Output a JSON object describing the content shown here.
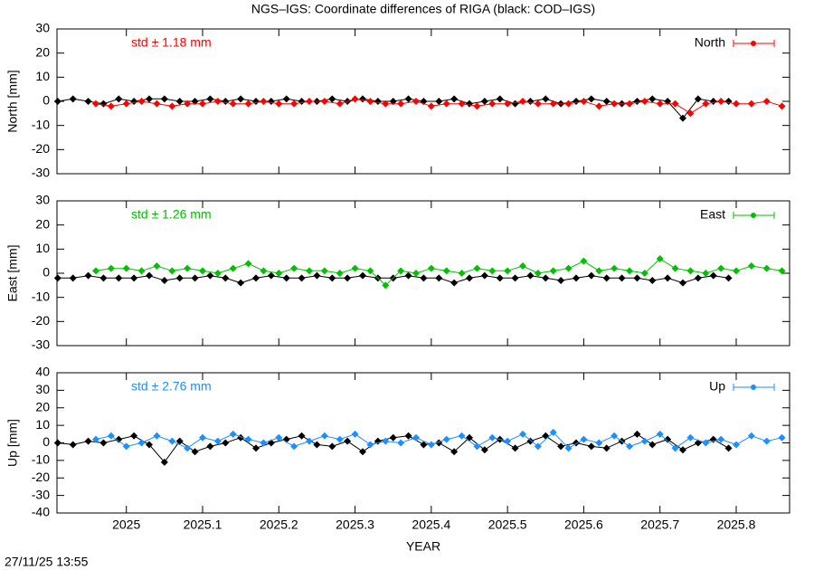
{
  "title": "NGS–IGS: Coordinate differences of RIGA (black: COD–IGS)",
  "xlabel": "YEAR",
  "timestamp": "27/11/25 13:55",
  "chart_data": [
    {
      "type": "line",
      "ylabel": "North [mm]",
      "annotation": "std ± 1.18 mm",
      "legend": "upper right",
      "xlim": [
        2024.909,
        2025.87
      ],
      "xticks": [
        2025,
        2025.1,
        2025.2,
        2025.3,
        2025.4,
        2025.5,
        2025.6,
        2025.7,
        2025.8
      ],
      "ylim": [
        -30,
        30
      ],
      "yticks": [
        -30,
        -20,
        -10,
        0,
        10,
        20,
        30
      ],
      "series": [
        {
          "color": "#000000",
          "x": [
            2024.91,
            2024.93,
            2024.95,
            2024.97,
            2024.99,
            2025.01,
            2025.03,
            2025.05,
            2025.07,
            2025.09,
            2025.11,
            2025.13,
            2025.15,
            2025.17,
            2025.19,
            2025.21,
            2025.23,
            2025.25,
            2025.27,
            2025.29,
            2025.31,
            2025.33,
            2025.35,
            2025.37,
            2025.39,
            2025.41,
            2025.43,
            2025.45,
            2025.47,
            2025.49,
            2025.51,
            2025.53,
            2025.55,
            2025.57,
            2025.59,
            2025.61,
            2025.63,
            2025.65,
            2025.67,
            2025.69,
            2025.71,
            2025.73,
            2025.75,
            2025.77,
            2025.79
          ],
          "values": [
            0,
            1,
            0,
            -1,
            1,
            0,
            1,
            1,
            0,
            0,
            1,
            0,
            1,
            0,
            0,
            1,
            0,
            0,
            1,
            0,
            1,
            0,
            0,
            1,
            0,
            0,
            1,
            -1,
            0,
            1,
            -1,
            0,
            1,
            -1,
            0,
            1,
            0,
            -1,
            0,
            1,
            0,
            -7,
            1,
            0,
            0
          ]
        },
        {
          "name": "North",
          "color": "#ff0000",
          "x": [
            2024.96,
            2024.98,
            2025,
            2025.02,
            2025.04,
            2025.06,
            2025.08,
            2025.1,
            2025.12,
            2025.14,
            2025.16,
            2025.18,
            2025.2,
            2025.22,
            2025.24,
            2025.26,
            2025.28,
            2025.3,
            2025.32,
            2025.34,
            2025.36,
            2025.38,
            2025.4,
            2025.42,
            2025.44,
            2025.46,
            2025.48,
            2025.5,
            2025.52,
            2025.54,
            2025.56,
            2025.58,
            2025.6,
            2025.62,
            2025.64,
            2025.66,
            2025.68,
            2025.7,
            2025.72,
            2025.74,
            2025.76,
            2025.78,
            2025.8,
            2025.82,
            2025.84,
            2025.86
          ],
          "values": [
            -1,
            -2,
            -1,
            0,
            -1,
            -2,
            -1,
            -1,
            0,
            -1,
            -1,
            0,
            -1,
            -1,
            0,
            0,
            -1,
            1,
            0,
            -1,
            -1,
            0,
            -2,
            -1,
            -1,
            -2,
            -1,
            -1,
            0,
            -1,
            -1,
            -1,
            0,
            -2,
            -1,
            -1,
            0,
            -1,
            -1,
            -5,
            -1,
            0,
            -1,
            -1,
            0,
            -2
          ]
        }
      ]
    },
    {
      "type": "line",
      "ylabel": "East [mm]",
      "annotation": "std ± 1.26 mm",
      "legend": "upper right",
      "xlim": [
        2024.909,
        2025.87
      ],
      "xticks": [
        2025,
        2025.1,
        2025.2,
        2025.3,
        2025.4,
        2025.5,
        2025.6,
        2025.7,
        2025.8
      ],
      "ylim": [
        -30,
        30
      ],
      "yticks": [
        -30,
        -20,
        -10,
        0,
        10,
        20,
        30
      ],
      "series": [
        {
          "color": "#000000",
          "x": [
            2024.91,
            2024.93,
            2024.95,
            2024.97,
            2024.99,
            2025.01,
            2025.03,
            2025.05,
            2025.07,
            2025.09,
            2025.11,
            2025.13,
            2025.15,
            2025.17,
            2025.19,
            2025.21,
            2025.23,
            2025.25,
            2025.27,
            2025.29,
            2025.31,
            2025.33,
            2025.35,
            2025.37,
            2025.39,
            2025.41,
            2025.43,
            2025.45,
            2025.47,
            2025.49,
            2025.51,
            2025.53,
            2025.55,
            2025.57,
            2025.59,
            2025.61,
            2025.63,
            2025.65,
            2025.67,
            2025.69,
            2025.71,
            2025.73,
            2025.75,
            2025.77,
            2025.79
          ],
          "values": [
            -2,
            -2,
            -1,
            -2,
            -2,
            -2,
            -1,
            -3,
            -2,
            -2,
            -1,
            -2,
            -4,
            -2,
            -1,
            -2,
            -2,
            -1,
            -2,
            -2,
            -1,
            -2,
            -2,
            -1,
            -2,
            -2,
            -4,
            -2,
            -1,
            -2,
            -2,
            -1,
            -2,
            -3,
            -2,
            -1,
            -2,
            -2,
            -2,
            -3,
            -2,
            -4,
            -2,
            -1,
            -2
          ]
        },
        {
          "name": "East",
          "color": "#00c000",
          "x": [
            2024.96,
            2024.98,
            2025,
            2025.02,
            2025.04,
            2025.06,
            2025.08,
            2025.1,
            2025.12,
            2025.14,
            2025.16,
            2025.18,
            2025.2,
            2025.22,
            2025.24,
            2025.26,
            2025.28,
            2025.3,
            2025.32,
            2025.34,
            2025.36,
            2025.38,
            2025.4,
            2025.42,
            2025.44,
            2025.46,
            2025.48,
            2025.5,
            2025.52,
            2025.54,
            2025.56,
            2025.58,
            2025.6,
            2025.62,
            2025.64,
            2025.66,
            2025.68,
            2025.7,
            2025.72,
            2025.74,
            2025.76,
            2025.78,
            2025.8,
            2025.82,
            2025.84,
            2025.86
          ],
          "values": [
            1,
            2,
            2,
            1,
            3,
            1,
            2,
            1,
            0,
            2,
            4,
            1,
            0,
            2,
            1,
            1,
            0,
            2,
            1,
            -5,
            1,
            0,
            2,
            1,
            0,
            2,
            1,
            1,
            3,
            0,
            1,
            2,
            5,
            1,
            2,
            1,
            0,
            6,
            2,
            1,
            0,
            2,
            1,
            3,
            2,
            1
          ]
        }
      ]
    },
    {
      "type": "line",
      "ylabel": "Up [mm]",
      "annotation": "std ± 2.76 mm",
      "legend": "upper right",
      "xlim": [
        2024.909,
        2025.87
      ],
      "xticks": [
        2025,
        2025.1,
        2025.2,
        2025.3,
        2025.4,
        2025.5,
        2025.6,
        2025.7,
        2025.8
      ],
      "ylim": [
        -40,
        40
      ],
      "yticks": [
        -40,
        -30,
        -20,
        -10,
        0,
        10,
        20,
        30,
        40
      ],
      "series": [
        {
          "color": "#000000",
          "x": [
            2024.91,
            2024.93,
            2024.95,
            2024.97,
            2024.99,
            2025.01,
            2025.03,
            2025.05,
            2025.07,
            2025.09,
            2025.11,
            2025.13,
            2025.15,
            2025.17,
            2025.19,
            2025.21,
            2025.23,
            2025.25,
            2025.27,
            2025.29,
            2025.31,
            2025.33,
            2025.35,
            2025.37,
            2025.39,
            2025.41,
            2025.43,
            2025.45,
            2025.47,
            2025.49,
            2025.51,
            2025.53,
            2025.55,
            2025.57,
            2025.59,
            2025.61,
            2025.63,
            2025.65,
            2025.67,
            2025.69,
            2025.71,
            2025.73,
            2025.75,
            2025.77,
            2025.79
          ],
          "values": [
            0,
            -1,
            1,
            0,
            2,
            4,
            -1,
            -11,
            1,
            -5,
            -2,
            0,
            3,
            -3,
            0,
            2,
            4,
            -1,
            -2,
            1,
            -5,
            1,
            3,
            4,
            -1,
            0,
            -5,
            3,
            -4,
            2,
            -3,
            1,
            4,
            -2,
            0,
            -2,
            -3,
            1,
            5,
            -1,
            2,
            -4,
            0,
            2,
            -3
          ]
        },
        {
          "name": "Up",
          "color": "#1e8fff",
          "x": [
            2024.96,
            2024.98,
            2025,
            2025.02,
            2025.04,
            2025.06,
            2025.08,
            2025.1,
            2025.12,
            2025.14,
            2025.16,
            2025.18,
            2025.2,
            2025.22,
            2025.24,
            2025.26,
            2025.28,
            2025.3,
            2025.32,
            2025.34,
            2025.36,
            2025.38,
            2025.4,
            2025.42,
            2025.44,
            2025.46,
            2025.48,
            2025.5,
            2025.52,
            2025.54,
            2025.56,
            2025.58,
            2025.6,
            2025.62,
            2025.64,
            2025.66,
            2025.68,
            2025.7,
            2025.72,
            2025.74,
            2025.76,
            2025.78,
            2025.8,
            2025.82,
            2025.84,
            2025.86
          ],
          "values": [
            2,
            4,
            -2,
            0,
            4,
            1,
            -3,
            3,
            1,
            5,
            2,
            0,
            3,
            -2,
            1,
            4,
            2,
            5,
            -1,
            1,
            0,
            3,
            -1,
            2,
            4,
            -2,
            3,
            1,
            5,
            -2,
            6,
            -3,
            2,
            0,
            4,
            -2,
            1,
            5,
            -3,
            3,
            0,
            2,
            -1,
            4,
            1,
            3
          ]
        }
      ]
    }
  ]
}
